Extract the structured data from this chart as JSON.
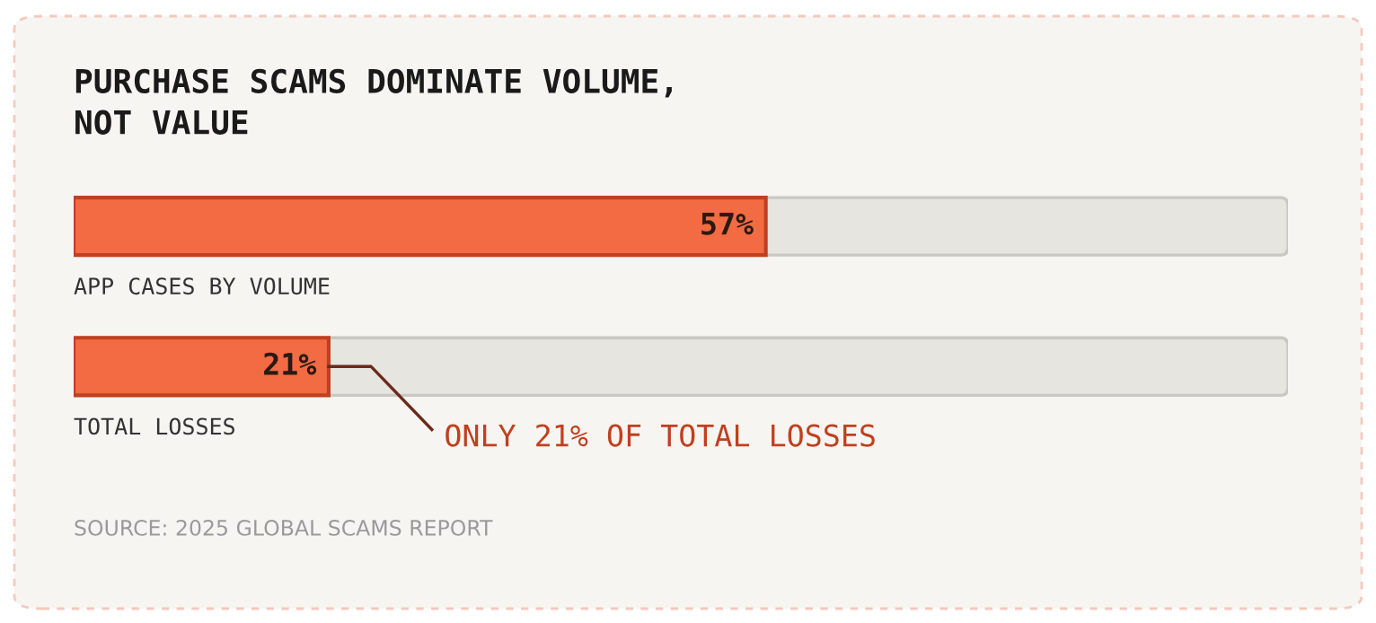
{
  "chart_data": {
    "type": "bar",
    "orientation": "horizontal",
    "title": "PURCHASE SCAMS DOMINATE VOLUME,\nNOT VALUE",
    "categories": [
      "APP CASES BY VOLUME",
      "TOTAL LOSSES"
    ],
    "values": [
      57,
      21
    ],
    "value_labels": [
      "57%",
      "21%"
    ],
    "color": "#f26b43",
    "xlim": [
      0,
      100
    ],
    "annotations": [
      "ONLY 21% OF TOTAL LOSSES",
      "SOURCE: 2025 GLOBAL SCAMS REPORT"
    ]
  }
}
